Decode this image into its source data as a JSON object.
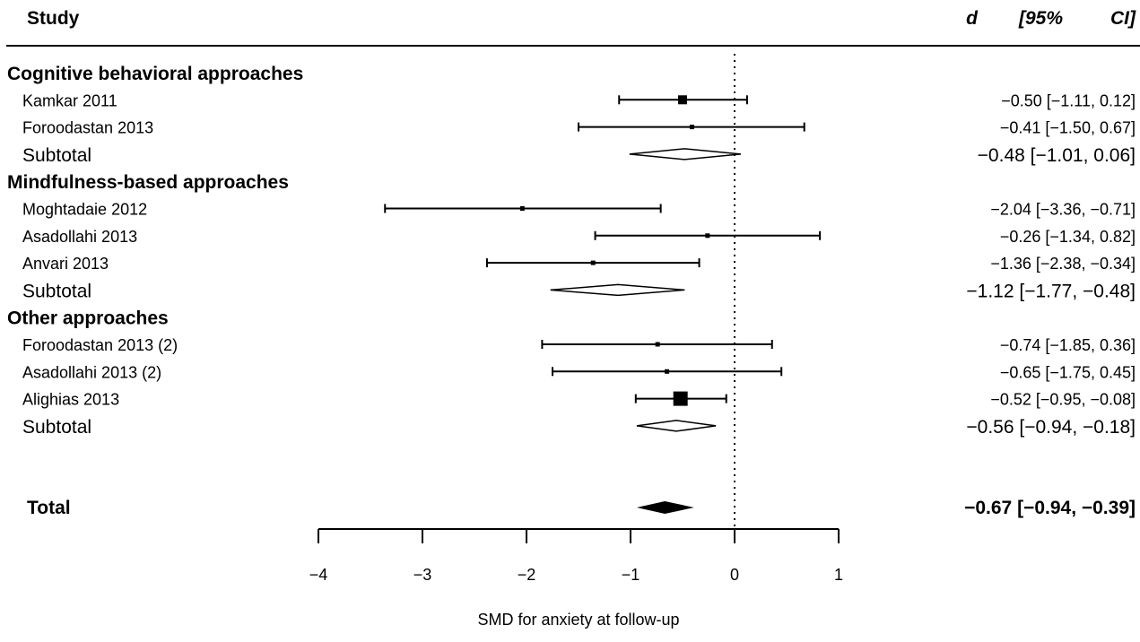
{
  "chart_data": {
    "type": "forest",
    "title": "",
    "xlabel": "SMD for anxiety at follow-up",
    "xlim": [
      -4,
      1
    ],
    "xticks": [
      -4,
      -3,
      -2,
      -1,
      0,
      1
    ],
    "xtick_labels": [
      "−4",
      "−3",
      "−2",
      "−1",
      "0",
      "1"
    ],
    "reference_line": 0,
    "headers": {
      "study": "Study",
      "d": "d",
      "ci_left": "[95%",
      "ci_right": "CI]"
    },
    "groups": [
      {
        "name": "Cognitive behavioral approaches",
        "studies": [
          {
            "name": "Kamkar 2011",
            "d": -0.5,
            "lo": -1.11,
            "hi": 0.12,
            "weight": "large",
            "label": "−0.50 [−1.11,  0.12]"
          },
          {
            "name": "Foroodastan 2013",
            "d": -0.41,
            "lo": -1.5,
            "hi": 0.67,
            "weight": "small",
            "label": "−0.41 [−1.50,  0.67]"
          }
        ],
        "subtotal": {
          "name": "Subtotal",
          "d": -0.48,
          "lo": -1.01,
          "hi": 0.06,
          "label": "−0.48 [−1.01, 0.06]"
        }
      },
      {
        "name": "Mindfulness-based approaches",
        "studies": [
          {
            "name": "Moghtadaie 2012",
            "d": -2.04,
            "lo": -3.36,
            "hi": -0.71,
            "weight": "small",
            "label": "−2.04 [−3.36, −0.71]"
          },
          {
            "name": "Asadollahi 2013",
            "d": -0.26,
            "lo": -1.34,
            "hi": 0.82,
            "weight": "small",
            "label": "−0.26 [−1.34,  0.82]"
          },
          {
            "name": "Anvari 2013",
            "d": -1.36,
            "lo": -2.38,
            "hi": -0.34,
            "weight": "small",
            "label": "−1.36 [−2.38, −0.34]"
          }
        ],
        "subtotal": {
          "name": "Subtotal",
          "d": -1.12,
          "lo": -1.77,
          "hi": -0.48,
          "label": "−1.12 [−1.77, −0.48]"
        }
      },
      {
        "name": "Other approaches",
        "studies": [
          {
            "name": "Foroodastan 2013 (2)",
            "d": -0.74,
            "lo": -1.85,
            "hi": 0.36,
            "weight": "small",
            "label": "−0.74 [−1.85,  0.36]"
          },
          {
            "name": "Asadollahi 2013 (2)",
            "d": -0.65,
            "lo": -1.75,
            "hi": 0.45,
            "weight": "small",
            "label": "−0.65 [−1.75,  0.45]"
          },
          {
            "name": "Alighias 2013",
            "d": -0.52,
            "lo": -0.95,
            "hi": -0.08,
            "weight": "xlarge",
            "label": "−0.52 [−0.95, −0.08]"
          }
        ],
        "subtotal": {
          "name": "Subtotal",
          "d": -0.56,
          "lo": -0.94,
          "hi": -0.18,
          "label": "−0.56 [−0.94, −0.18]"
        }
      }
    ],
    "total": {
      "name": "Total",
      "d": -0.67,
      "lo": -0.94,
      "hi": -0.39,
      "label": "−0.67 [−0.94, −0.39]"
    }
  }
}
